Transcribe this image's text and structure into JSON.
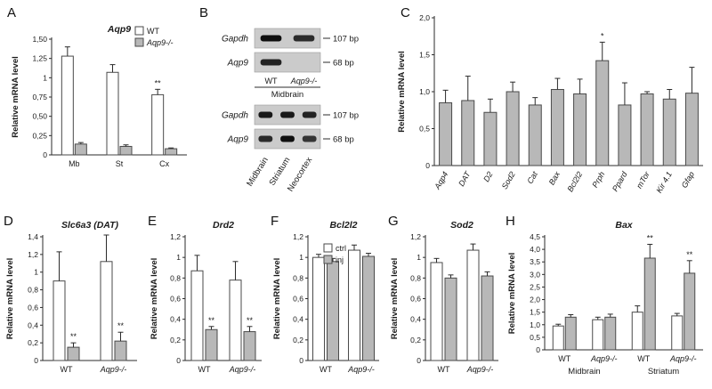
{
  "colors": {
    "bar_fill_gray": "#b8b8b8",
    "bar_stroke": "#4a4a4a",
    "axis": "#2b2b2b",
    "text": "#1a1a1a",
    "gel_bg": "#cbcbcb",
    "gel_border": "#9a9a9a",
    "gel_band": "15,15,15"
  },
  "panel_labels": {
    "A": "A",
    "B": "B",
    "C": "C",
    "D": "D",
    "E": "E",
    "F": "F",
    "G": "G",
    "H": "H"
  },
  "chart_data": [
    {
      "panel": "A",
      "type": "bar",
      "title": "Aqp9",
      "title_italic": true,
      "ylabel": "Relative mRNA level",
      "ylim": [
        0,
        1.5
      ],
      "yticks": [
        0,
        0.25,
        0.5,
        0.75,
        1,
        1.25,
        1.5
      ],
      "ytick_labels": [
        "0",
        "0,25",
        "0,50",
        "0,75",
        "1",
        "1,25",
        "1,50"
      ],
      "categories": [
        {
          "label": "Mb"
        },
        {
          "label": "St"
        },
        {
          "label": "Cx"
        }
      ],
      "legend": [
        {
          "label": "WT",
          "fill": "white"
        },
        {
          "label": "Aqp9-/-",
          "fill": "gray",
          "italic": true
        }
      ],
      "series": [
        {
          "name": "WT",
          "fill": "white",
          "values": [
            1.28,
            1.07,
            0.78
          ],
          "errors": [
            0.12,
            0.1,
            0.07
          ],
          "sig": [
            "",
            "",
            "**"
          ]
        },
        {
          "name": "Aqp9-/-",
          "fill": "gray",
          "values": [
            0.14,
            0.11,
            0.08
          ],
          "errors": [
            0.02,
            0.02,
            0.01
          ],
          "sig": [
            "",
            "",
            ""
          ]
        }
      ]
    },
    {
      "panel": "C",
      "type": "bar",
      "title": "",
      "title_italic": false,
      "ylabel": "Relative mRNA level",
      "ylim": [
        0,
        2
      ],
      "yticks": [
        0,
        0.5,
        1,
        1.5,
        2
      ],
      "ytick_labels": [
        "0",
        "0,5",
        "1,0",
        "1,5",
        "2,0"
      ],
      "xrotate": true,
      "categories": [
        {
          "label": "Aqp4",
          "italic": true
        },
        {
          "label": "DAT",
          "italic": true
        },
        {
          "label": "D2",
          "italic": true
        },
        {
          "label": "Sod2",
          "italic": true
        },
        {
          "label": "Cat",
          "italic": true
        },
        {
          "label": "Bax",
          "italic": true
        },
        {
          "label": "Bcl2l2",
          "italic": true
        },
        {
          "label": "Prph",
          "italic": true
        },
        {
          "label": "Ppard",
          "italic": true
        },
        {
          "label": "mTor",
          "italic": true
        },
        {
          "label": "Kir 4.1",
          "italic": true
        },
        {
          "label": "Gfap",
          "italic": true
        }
      ],
      "series": [
        {
          "name": "Aqp9-/-",
          "fill": "gray",
          "values": [
            0.85,
            0.88,
            0.72,
            1.0,
            0.82,
            1.03,
            0.97,
            1.42,
            0.82,
            0.97,
            0.9,
            0.98
          ],
          "errors": [
            0.17,
            0.33,
            0.18,
            0.13,
            0.1,
            0.15,
            0.2,
            0.25,
            0.3,
            0.03,
            0.13,
            0.35
          ],
          "sig": [
            "",
            "",
            "",
            "",
            "",
            "",
            "",
            "*",
            "",
            "",
            "",
            ""
          ]
        }
      ]
    },
    {
      "panel": "D",
      "type": "bar",
      "title": "Slc6a3 (DAT)",
      "title_italic": true,
      "ylabel": "Relative mRNA level",
      "ylim": [
        0,
        1.4
      ],
      "yticks": [
        0,
        0.2,
        0.4,
        0.6,
        0.8,
        1,
        1.2,
        1.4
      ],
      "ytick_labels": [
        "0",
        "0,2",
        "0,4",
        "0,6",
        "0,8",
        "1",
        "1,2",
        "1,4"
      ],
      "categories": [
        {
          "label": "WT"
        },
        {
          "label": "Aqp9-/-",
          "italic": true
        }
      ],
      "series": [
        {
          "name": "ctrl",
          "fill": "white",
          "values": [
            0.9,
            1.12
          ],
          "errors": [
            0.33,
            0.3
          ],
          "sig": [
            "",
            ""
          ]
        },
        {
          "name": "inj",
          "fill": "gray",
          "values": [
            0.15,
            0.22
          ],
          "errors": [
            0.05,
            0.1
          ],
          "sig": [
            "**",
            "**"
          ]
        }
      ]
    },
    {
      "panel": "E",
      "type": "bar",
      "title": "Drd2",
      "title_italic": true,
      "ylabel": "Relative mRNA level",
      "ylim": [
        0,
        1.2
      ],
      "yticks": [
        0,
        0.2,
        0.4,
        0.6,
        0.8,
        1,
        1.2
      ],
      "ytick_labels": [
        "0",
        "0,2",
        "0,4",
        "0,6",
        "0,8",
        "1",
        "1,2"
      ],
      "categories": [
        {
          "label": "WT"
        },
        {
          "label": "Aqp9-/-",
          "italic": true
        }
      ],
      "series": [
        {
          "name": "ctrl",
          "fill": "white",
          "values": [
            0.87,
            0.78
          ],
          "errors": [
            0.15,
            0.18
          ],
          "sig": [
            "",
            ""
          ]
        },
        {
          "name": "inj",
          "fill": "gray",
          "values": [
            0.3,
            0.28
          ],
          "errors": [
            0.03,
            0.05
          ],
          "sig": [
            "**",
            "**"
          ]
        }
      ]
    },
    {
      "panel": "F",
      "type": "bar",
      "title": "Bcl2l2",
      "title_italic": true,
      "ylabel": "Relative mRNA level",
      "ylim": [
        0,
        1.2
      ],
      "yticks": [
        0,
        0.2,
        0.4,
        0.6,
        0.8,
        1,
        1.2
      ],
      "ytick_labels": [
        "0",
        "0,2",
        "0,4",
        "0,6",
        "0,8",
        "1",
        "1,2"
      ],
      "legend": [
        {
          "label": "ctrl",
          "fill": "white"
        },
        {
          "label": "inj",
          "fill": "gray"
        }
      ],
      "categories": [
        {
          "label": "WT"
        },
        {
          "label": "Aqp9-/-",
          "italic": true
        }
      ],
      "series": [
        {
          "name": "ctrl",
          "fill": "white",
          "values": [
            1.0,
            1.07
          ],
          "errors": [
            0.03,
            0.05
          ],
          "sig": [
            "",
            ""
          ]
        },
        {
          "name": "inj",
          "fill": "gray",
          "values": [
            0.96,
            1.01
          ],
          "errors": [
            0.03,
            0.03
          ],
          "sig": [
            "",
            ""
          ]
        }
      ]
    },
    {
      "panel": "G",
      "type": "bar",
      "title": "Sod2",
      "title_italic": true,
      "ylabel": "Relative mRNA level",
      "ylim": [
        0,
        1.2
      ],
      "yticks": [
        0,
        0.2,
        0.4,
        0.6,
        0.8,
        1,
        1.2
      ],
      "ytick_labels": [
        "0",
        "0,2",
        "0,4",
        "0,6",
        "0,8",
        "1",
        "1,2"
      ],
      "categories": [
        {
          "label": "WT"
        },
        {
          "label": "Aqp9-/-",
          "italic": true
        }
      ],
      "series": [
        {
          "name": "ctrl",
          "fill": "white",
          "values": [
            0.95,
            1.07
          ],
          "errors": [
            0.04,
            0.06
          ],
          "sig": [
            "",
            ""
          ]
        },
        {
          "name": "inj",
          "fill": "gray",
          "values": [
            0.8,
            0.82
          ],
          "errors": [
            0.03,
            0.04
          ],
          "sig": [
            "",
            ""
          ]
        }
      ]
    },
    {
      "panel": "H",
      "type": "bar",
      "title": "Bax",
      "title_italic": true,
      "ylabel": "Relative mRNA level",
      "ylim": [
        0,
        4.5
      ],
      "yticks": [
        0,
        0.5,
        1,
        1.5,
        2,
        2.5,
        3,
        3.5,
        4,
        4.5
      ],
      "ytick_labels": [
        "0",
        "0,5",
        "1,0",
        "1,5",
        "2,0",
        "2,5",
        "3,0",
        "3,5",
        "4,0",
        "4,5"
      ],
      "categories": [
        {
          "label": "WT"
        },
        {
          "label": "Aqp9-/-",
          "italic": true
        },
        {
          "label": "WT"
        },
        {
          "label": "Aqp9-/-",
          "italic": true
        }
      ],
      "group_labels": [
        "Midbrain",
        "Striatum"
      ],
      "series": [
        {
          "name": "ctrl",
          "fill": "white",
          "values": [
            0.95,
            1.2,
            1.5,
            1.35
          ],
          "errors": [
            0.07,
            0.1,
            0.25,
            0.1
          ],
          "sig": [
            "",
            "",
            "",
            ""
          ]
        },
        {
          "name": "inj",
          "fill": "gray",
          "values": [
            1.3,
            1.3,
            3.65,
            3.05
          ],
          "errors": [
            0.1,
            0.12,
            0.55,
            0.5
          ],
          "sig": [
            "",
            "",
            "**",
            "**"
          ]
        }
      ]
    }
  ],
  "gel_data": {
    "panel": "B",
    "gels": [
      {
        "rows": [
          {
            "gene": "Gapdh",
            "gene_italic": true,
            "size_label": "107 bp",
            "bands": [
              1,
              0.85
            ]
          },
          {
            "gene": "Aqp9",
            "gene_italic": true,
            "size_label": "68 bp",
            "bands": [
              0.9,
              0
            ]
          }
        ],
        "lane_labels": [
          {
            "label": "WT"
          },
          {
            "label": "Aqp9-/-",
            "italic": true
          }
        ],
        "group_label": "Midbrain",
        "rotate_lane_labels": false
      },
      {
        "rows": [
          {
            "gene": "Gapdh",
            "gene_italic": true,
            "size_label": "107 bp",
            "bands": [
              0.95,
              0.95,
              0.9
            ]
          },
          {
            "gene": "Aqp9",
            "gene_italic": true,
            "size_label": "68 bp",
            "bands": [
              0.85,
              1,
              0.8
            ]
          }
        ],
        "lane_labels": [
          {
            "label": "Midbrain"
          },
          {
            "label": "Striatum"
          },
          {
            "label": "Neocortex"
          }
        ],
        "group_label": "",
        "rotate_lane_labels": true
      }
    ]
  }
}
